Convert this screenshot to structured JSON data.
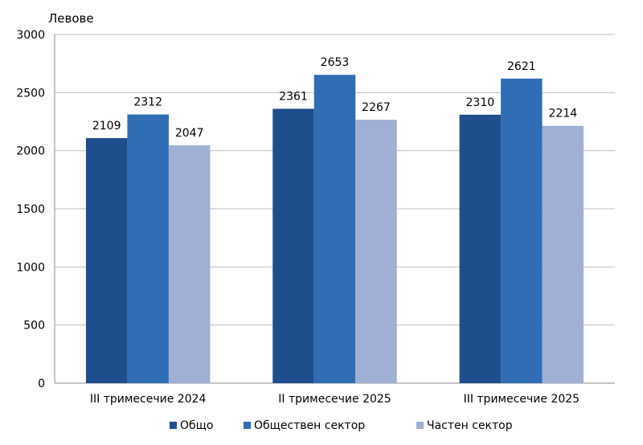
{
  "chart_data": {
    "type": "bar",
    "ylabel": "Левове",
    "xlabel": "",
    "title": "",
    "ylim": [
      0,
      3000
    ],
    "yticks": [
      0,
      500,
      1000,
      1500,
      2000,
      2500,
      3000
    ],
    "grid": true,
    "legend_position": "bottom",
    "categories": [
      "III тримесечие 2024",
      "II тримесечие 2025",
      "III тримесечие 2025"
    ],
    "series": [
      {
        "name": "Общо",
        "color": "#1F4E8C",
        "values": [
          2109,
          2361,
          2310
        ]
      },
      {
        "name": "Обществен сектор",
        "color": "#2F6DB5",
        "values": [
          2312,
          2653,
          2621
        ]
      },
      {
        "name": "Частен сектор",
        "color": "#A0B0D4",
        "values": [
          2047,
          2267,
          2214
        ]
      }
    ]
  }
}
